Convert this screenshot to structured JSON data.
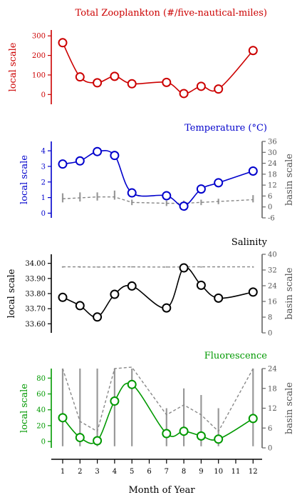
{
  "xlabel": "Month of Year",
  "x_ticks": [
    1,
    2,
    3,
    4,
    5,
    6,
    7,
    8,
    9,
    10,
    11,
    12
  ],
  "chart_data": [
    {
      "type": "line",
      "title": "Total Zooplankton (#/five-nautical-miles)",
      "color": "#cc0000",
      "ylabel": "local scale",
      "ylim": [
        -50,
        330
      ],
      "yticks": [
        0,
        100,
        200,
        300
      ],
      "x": [
        1,
        2,
        3,
        4,
        5,
        7,
        8,
        9,
        10,
        12
      ],
      "values": [
        265,
        90,
        60,
        93,
        55,
        62,
        5,
        42,
        28,
        225
      ]
    },
    {
      "type": "line",
      "title": "Temperature (°C)",
      "color": "#0000cc",
      "ylabel": "local scale",
      "ylim": [
        -0.3,
        4.6
      ],
      "yticks": [
        0,
        1,
        2,
        3,
        4
      ],
      "x": [
        1,
        2,
        3,
        4,
        5,
        7,
        8,
        9,
        10,
        12
      ],
      "values": [
        3.15,
        3.35,
        3.95,
        3.7,
        1.3,
        1.12,
        0.45,
        1.55,
        1.95,
        2.7
      ],
      "basis": {
        "ylabel": "basin scale",
        "ylim": [
          -6,
          36
        ],
        "yticks": [
          -6,
          0,
          6,
          12,
          18,
          24,
          30,
          36
        ],
        "x": [
          1,
          2,
          3,
          4,
          5,
          7,
          8,
          9,
          10,
          12
        ],
        "mean": [
          4.5,
          5.0,
          5.5,
          5.5,
          2.5,
          2.0,
          2.0,
          2.5,
          3.0,
          4.0
        ],
        "low": [
          2.5,
          3.0,
          3.5,
          4.0,
          1.0,
          0.5,
          0.0,
          1.0,
          1.5,
          2.5
        ],
        "high": [
          7.5,
          8.0,
          8.0,
          9.0,
          4.0,
          3.5,
          3.5,
          4.0,
          4.5,
          6.5
        ]
      }
    },
    {
      "type": "line",
      "title": "Salinity",
      "color": "#000000",
      "ylabel": "local scale",
      "ylim": [
        33.54,
        34.06
      ],
      "yticks": [
        "33.60",
        "33.70",
        "33.80",
        "33.90",
        "34.00"
      ],
      "x": [
        1,
        2,
        3,
        4,
        5,
        7,
        8,
        9,
        10,
        12
      ],
      "values": [
        33.775,
        33.72,
        33.645,
        33.795,
        33.85,
        33.705,
        33.97,
        33.855,
        33.77,
        33.81
      ],
      "basis": {
        "ylabel": "basin scale",
        "ylim": [
          0,
          40
        ],
        "yticks": [
          0,
          8,
          16,
          24,
          32,
          40
        ],
        "x": [
          1,
          2,
          3,
          4,
          5,
          7,
          8,
          9,
          10,
          12
        ],
        "mean": [
          33.6,
          33.6,
          33.5,
          33.6,
          33.6,
          33.5,
          33.6,
          33.6,
          33.6,
          33.6
        ],
        "low": [
          33.2,
          33.2,
          33.3,
          33.2,
          33.3,
          33.2,
          33.0,
          33.2,
          33.3,
          33.2
        ],
        "high": [
          33.9,
          33.9,
          33.8,
          33.9,
          33.9,
          33.9,
          34.1,
          33.9,
          33.9,
          33.9
        ]
      }
    },
    {
      "type": "line",
      "title": "Fluorescence",
      "color": "#009900",
      "ylabel": "local scale",
      "ylim": [
        -8,
        92
      ],
      "yticks": [
        0,
        20,
        40,
        60,
        80
      ],
      "x": [
        1,
        2,
        3,
        4,
        5,
        7,
        8,
        9,
        10,
        12
      ],
      "values": [
        30,
        5,
        1,
        51,
        72,
        10,
        13,
        7,
        3,
        29
      ],
      "basis": {
        "ylabel": "basin scale",
        "ylim": [
          0,
          24
        ],
        "yticks": [
          0,
          6,
          12,
          18,
          24
        ],
        "x": [
          1,
          2,
          3,
          4,
          5,
          7,
          8,
          9,
          10,
          12
        ],
        "mean": [
          24,
          8,
          5,
          24,
          30,
          10,
          13,
          10,
          5,
          24
        ],
        "low": [
          0.5,
          0.5,
          0.5,
          0.5,
          0.5,
          0.5,
          0.5,
          0.5,
          0.5,
          0.5
        ],
        "high": [
          24,
          24,
          24,
          24,
          24,
          12,
          18,
          16,
          12,
          24
        ]
      }
    }
  ]
}
